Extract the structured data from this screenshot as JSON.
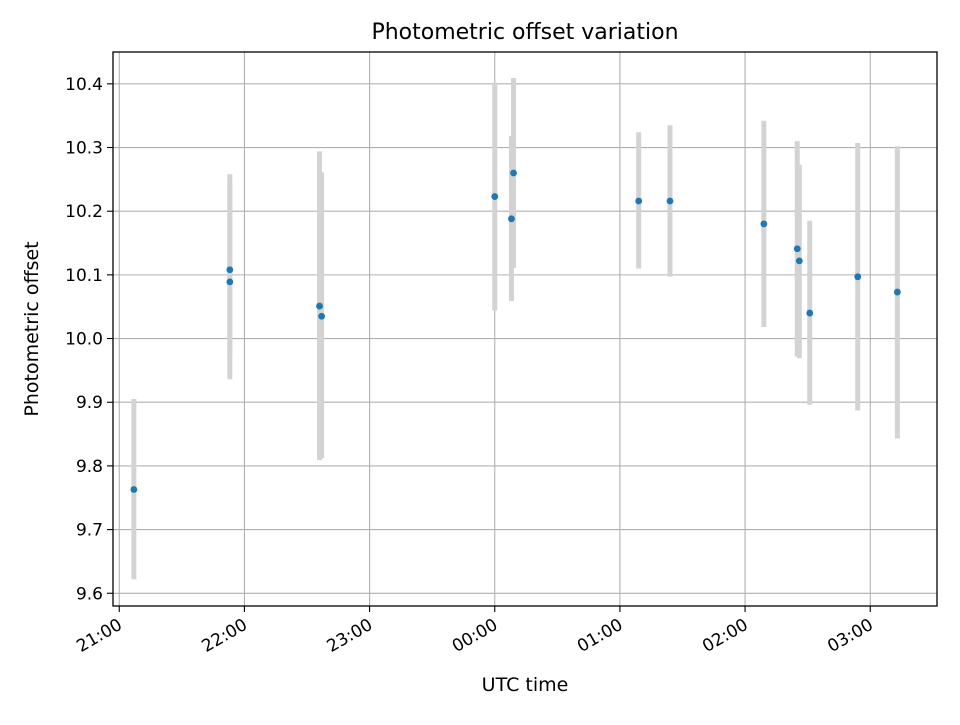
{
  "chart_data": {
    "type": "scatter",
    "title": "Photometric offset variation",
    "xlabel": "UTC time",
    "ylabel": "Photometric offset",
    "x_axis": {
      "kind": "time",
      "range": [
        "20:57",
        "03:32"
      ],
      "ticks": [
        "21:00",
        "22:00",
        "23:00",
        "00:00",
        "01:00",
        "02:00",
        "03:00"
      ]
    },
    "y_axis": {
      "range": [
        9.58,
        10.45
      ],
      "ticks": [
        "9.6",
        "9.7",
        "9.8",
        "9.9",
        "10.0",
        "10.1",
        "10.2",
        "10.3",
        "10.4"
      ]
    },
    "grid": true,
    "series": [
      {
        "marker_color": "#1f77b4",
        "errorbar_color": "#d3d3d3",
        "points": [
          {
            "x": "21:07",
            "y": 9.763,
            "y_low": 9.622,
            "y_high": 9.905
          },
          {
            "x": "21:53",
            "y": 10.108,
            "y_low": 9.972,
            "y_high": 10.258
          },
          {
            "x": "21:53",
            "y": 10.089,
            "y_low": 9.936,
            "y_high": 10.243
          },
          {
            "x": "22:36",
            "y": 10.051,
            "y_low": 9.809,
            "y_high": 10.294
          },
          {
            "x": "22:37",
            "y": 10.035,
            "y_low": 9.812,
            "y_high": 10.261
          },
          {
            "x": "00:00",
            "y": 10.223,
            "y_low": 10.044,
            "y_high": 10.402
          },
          {
            "x": "00:08",
            "y": 10.188,
            "y_low": 10.059,
            "y_high": 10.318
          },
          {
            "x": "00:09",
            "y": 10.26,
            "y_low": 10.111,
            "y_high": 10.409
          },
          {
            "x": "01:09",
            "y": 10.216,
            "y_low": 10.11,
            "y_high": 10.324
          },
          {
            "x": "01:24",
            "y": 10.216,
            "y_low": 10.097,
            "y_high": 10.335
          },
          {
            "x": "02:09",
            "y": 10.18,
            "y_low": 10.018,
            "y_high": 10.342
          },
          {
            "x": "02:25",
            "y": 10.141,
            "y_low": 9.972,
            "y_high": 10.31
          },
          {
            "x": "02:26",
            "y": 10.122,
            "y_low": 9.969,
            "y_high": 10.273
          },
          {
            "x": "02:31",
            "y": 10.04,
            "y_low": 9.896,
            "y_high": 10.185
          },
          {
            "x": "02:54",
            "y": 10.097,
            "y_low": 9.887,
            "y_high": 10.307
          },
          {
            "x": "03:13",
            "y": 10.073,
            "y_low": 9.843,
            "y_high": 10.302
          }
        ]
      }
    ]
  }
}
